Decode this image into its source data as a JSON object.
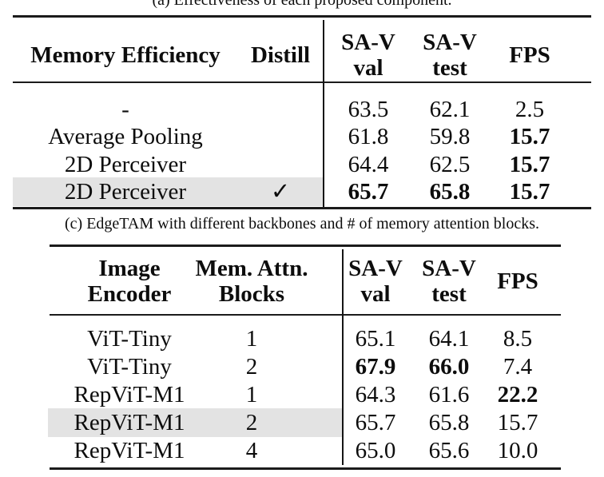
{
  "captions": {
    "top_partial": "(a) Effectiveness of each proposed component.",
    "middle": "(c) EdgeTAM with different backbones and # of memory attention blocks."
  },
  "colors": {
    "background": "#ffffff",
    "text": "#0d0d0d",
    "rule": "#1b1b1b",
    "row_highlight": "#e3e3e3"
  },
  "table_a": {
    "name": "effectiveness-of-components",
    "headers": [
      {
        "lines": [
          "Memory Efficiency"
        ]
      },
      {
        "lines": [
          "Distill"
        ]
      },
      {
        "lines": [
          "SA-V",
          "val"
        ]
      },
      {
        "lines": [
          "SA-V",
          "test"
        ]
      },
      {
        "lines": [
          "FPS"
        ]
      }
    ],
    "rows": [
      {
        "highlight": false,
        "cells": [
          {
            "text": "-",
            "bold": false
          },
          {
            "text": "",
            "bold": false
          },
          {
            "text": "63.5",
            "bold": false
          },
          {
            "text": "62.1",
            "bold": false
          },
          {
            "text": "2.5",
            "bold": false
          }
        ]
      },
      {
        "highlight": false,
        "cells": [
          {
            "text": "Average Pooling",
            "bold": false
          },
          {
            "text": "",
            "bold": false
          },
          {
            "text": "61.8",
            "bold": false
          },
          {
            "text": "59.8",
            "bold": false
          },
          {
            "text": "15.7",
            "bold": true
          }
        ]
      },
      {
        "highlight": false,
        "cells": [
          {
            "text": "2D Perceiver",
            "bold": false
          },
          {
            "text": "",
            "bold": false
          },
          {
            "text": "64.4",
            "bold": false
          },
          {
            "text": "62.5",
            "bold": false
          },
          {
            "text": "15.7",
            "bold": true
          }
        ]
      },
      {
        "highlight": true,
        "cells": [
          {
            "text": "2D Perceiver",
            "bold": false
          },
          {
            "text": "✓",
            "bold": false
          },
          {
            "text": "65.7",
            "bold": true
          },
          {
            "text": "65.8",
            "bold": true
          },
          {
            "text": "15.7",
            "bold": true
          }
        ]
      }
    ]
  },
  "table_c": {
    "name": "edgetam-backbones-memory-attention-blocks",
    "headers": [
      {
        "lines": [
          "Image",
          "Encoder"
        ]
      },
      {
        "lines": [
          "Mem. Attn.",
          "Blocks"
        ]
      },
      {
        "lines": [
          "SA-V",
          "val"
        ]
      },
      {
        "lines": [
          "SA-V",
          "test"
        ]
      },
      {
        "lines": [
          "FPS"
        ]
      }
    ],
    "rows": [
      {
        "highlight": false,
        "cells": [
          {
            "text": "ViT-Tiny",
            "bold": false
          },
          {
            "text": "1",
            "bold": false
          },
          {
            "text": "65.1",
            "bold": false
          },
          {
            "text": "64.1",
            "bold": false
          },
          {
            "text": "8.5",
            "bold": false
          }
        ]
      },
      {
        "highlight": false,
        "cells": [
          {
            "text": "ViT-Tiny",
            "bold": false
          },
          {
            "text": "2",
            "bold": false
          },
          {
            "text": "67.9",
            "bold": true
          },
          {
            "text": "66.0",
            "bold": true
          },
          {
            "text": "7.4",
            "bold": false
          }
        ]
      },
      {
        "highlight": false,
        "cells": [
          {
            "text": "RepViT-M1",
            "bold": false
          },
          {
            "text": "1",
            "bold": false
          },
          {
            "text": "64.3",
            "bold": false
          },
          {
            "text": "61.6",
            "bold": false
          },
          {
            "text": "22.2",
            "bold": true
          }
        ]
      },
      {
        "highlight": true,
        "cells": [
          {
            "text": "RepViT-M1",
            "bold": false
          },
          {
            "text": "2",
            "bold": false
          },
          {
            "text": "65.7",
            "bold": false
          },
          {
            "text": "65.8",
            "bold": false
          },
          {
            "text": "15.7",
            "bold": false
          }
        ]
      },
      {
        "highlight": false,
        "cells": [
          {
            "text": "RepViT-M1",
            "bold": false
          },
          {
            "text": "4",
            "bold": false
          },
          {
            "text": "65.0",
            "bold": false
          },
          {
            "text": "65.6",
            "bold": false
          },
          {
            "text": "10.0",
            "bold": false
          }
        ]
      }
    ]
  }
}
